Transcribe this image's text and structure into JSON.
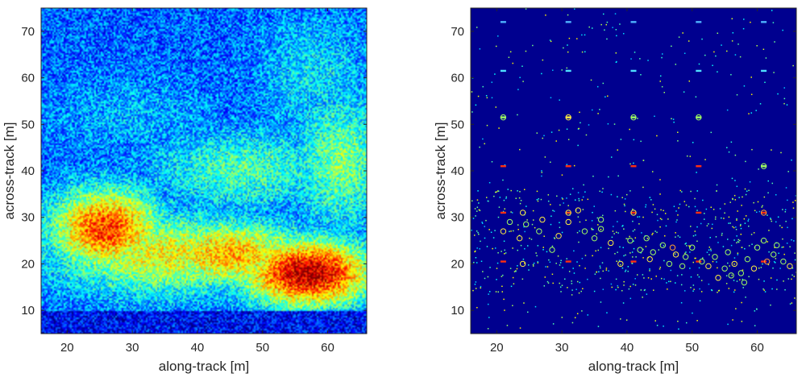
{
  "chart_data": [
    {
      "type": "heatmap",
      "title": "",
      "xlabel": "along-track [m]",
      "ylabel": "across-track [m]",
      "xlim": [
        16,
        66
      ],
      "ylim": [
        5,
        75
      ],
      "xticks": [
        "20",
        "30",
        "40",
        "50",
        "60"
      ],
      "yticks": [
        "10",
        "20",
        "30",
        "40",
        "50",
        "60",
        "70"
      ],
      "colormap": "jet",
      "grid": false,
      "intensity_blobs": [
        {
          "x": 26,
          "y": 27.5,
          "intensity": 0.82,
          "sx": 6,
          "sy": 6
        },
        {
          "x": 57,
          "y": 18,
          "intensity": 0.95,
          "sx": 7,
          "sy": 5
        },
        {
          "x": 45,
          "y": 22,
          "intensity": 0.7,
          "sx": 9,
          "sy": 5
        },
        {
          "x": 35,
          "y": 22,
          "intensity": 0.62,
          "sx": 12,
          "sy": 6
        },
        {
          "x": 62,
          "y": 42,
          "intensity": 0.5,
          "sx": 5,
          "sy": 10
        },
        {
          "x": 47,
          "y": 40,
          "intensity": 0.45,
          "sx": 10,
          "sy": 6
        },
        {
          "x": 58,
          "y": 60,
          "intensity": 0.35,
          "sx": 6,
          "sy": 10
        },
        {
          "x": 30,
          "y": 52,
          "intensity": 0.3,
          "sx": 10,
          "sy": 6
        }
      ]
    },
    {
      "type": "scatter",
      "title": "",
      "xlabel": "along-track [m]",
      "ylabel": "across-track [m]",
      "xlim": [
        16,
        66
      ],
      "ylim": [
        5,
        75
      ],
      "xticks": [
        "20",
        "30",
        "40",
        "50",
        "60"
      ],
      "yticks": [
        "10",
        "20",
        "30",
        "40",
        "50",
        "60",
        "70"
      ],
      "background": "#00008f",
      "grid": false,
      "grid_targets": [
        {
          "x": 21,
          "y": 72,
          "color": "#4fb3ff"
        },
        {
          "x": 31,
          "y": 72,
          "color": "#4fb3ff"
        },
        {
          "x": 41,
          "y": 72,
          "color": "#4fb3ff"
        },
        {
          "x": 51,
          "y": 72,
          "color": "#4fb3ff"
        },
        {
          "x": 61,
          "y": 72,
          "color": "#4fb3ff"
        },
        {
          "x": 21,
          "y": 61.5,
          "color": "#4fe0ff"
        },
        {
          "x": 31,
          "y": 61.5,
          "color": "#4fe0ff"
        },
        {
          "x": 41,
          "y": 61.5,
          "color": "#4fe0ff"
        },
        {
          "x": 51,
          "y": 61.5,
          "color": "#4fe0ff"
        },
        {
          "x": 61,
          "y": 61.5,
          "color": "#4fe0ff"
        },
        {
          "x": 21,
          "y": 51.5,
          "color": "#9fff60"
        },
        {
          "x": 31,
          "y": 51.5,
          "color": "#ffee40"
        },
        {
          "x": 41,
          "y": 51.5,
          "color": "#9fff60"
        },
        {
          "x": 51,
          "y": 51.5,
          "color": "#9fff60"
        },
        {
          "x": 21,
          "y": 41,
          "color": "#ff3010"
        },
        {
          "x": 31,
          "y": 41,
          "color": "#ff3010"
        },
        {
          "x": 41,
          "y": 41,
          "color": "#ff3010"
        },
        {
          "x": 51,
          "y": 41,
          "color": "#ff3010"
        },
        {
          "x": 61,
          "y": 41,
          "color": "#9fff60"
        },
        {
          "x": 21,
          "y": 31,
          "color": "#ff3010"
        },
        {
          "x": 31,
          "y": 31,
          "color": "#ff5020"
        },
        {
          "x": 41,
          "y": 31,
          "color": "#ff3010"
        },
        {
          "x": 51,
          "y": 31,
          "color": "#ff3010"
        },
        {
          "x": 61,
          "y": 31,
          "color": "#ff3010"
        },
        {
          "x": 21,
          "y": 20.5,
          "color": "#ff3010"
        },
        {
          "x": 31,
          "y": 20.5,
          "color": "#ff3010"
        },
        {
          "x": 41,
          "y": 20.5,
          "color": "#ff3010"
        },
        {
          "x": 51,
          "y": 20.5,
          "color": "#ff3010"
        },
        {
          "x": 61,
          "y": 20.5,
          "color": "#ff3010"
        }
      ],
      "circled_detections": [
        {
          "x": 21.0,
          "y": 51.5,
          "color": "#a0ff60"
        },
        {
          "x": 31.0,
          "y": 51.5,
          "color": "#ffee40"
        },
        {
          "x": 41.0,
          "y": 51.5,
          "color": "#a0ff60"
        },
        {
          "x": 51.0,
          "y": 51.5,
          "color": "#a0ff60"
        },
        {
          "x": 61.0,
          "y": 41.0,
          "color": "#a0ff60"
        },
        {
          "x": 31.0,
          "y": 31.0,
          "color": "#ffee40"
        },
        {
          "x": 41.0,
          "y": 31.0,
          "color": "#ffee40"
        },
        {
          "x": 61.0,
          "y": 31.0,
          "color": "#ffa030"
        },
        {
          "x": 21.0,
          "y": 27.0,
          "color": "#ffee40"
        },
        {
          "x": 22.0,
          "y": 29.0,
          "color": "#a0ff60"
        },
        {
          "x": 24.0,
          "y": 31.0,
          "color": "#ffee40"
        },
        {
          "x": 24.5,
          "y": 28.5,
          "color": "#a0ff60"
        },
        {
          "x": 23.5,
          "y": 25.5,
          "color": "#ffee40"
        },
        {
          "x": 26.5,
          "y": 27.0,
          "color": "#a0ff60"
        },
        {
          "x": 27.0,
          "y": 29.5,
          "color": "#ffee40"
        },
        {
          "x": 28.5,
          "y": 23.0,
          "color": "#a0ff60"
        },
        {
          "x": 29.5,
          "y": 26.0,
          "color": "#ffee40"
        },
        {
          "x": 31.0,
          "y": 29.0,
          "color": "#ffee40"
        },
        {
          "x": 32.5,
          "y": 31.5,
          "color": "#ffee40"
        },
        {
          "x": 33.5,
          "y": 27.0,
          "color": "#a0ff60"
        },
        {
          "x": 35.0,
          "y": 25.5,
          "color": "#a0ff60"
        },
        {
          "x": 36.0,
          "y": 27.5,
          "color": "#a0ff60"
        },
        {
          "x": 36.0,
          "y": 29.5,
          "color": "#a0ff60"
        },
        {
          "x": 37.5,
          "y": 24.5,
          "color": "#ffee40"
        },
        {
          "x": 24.0,
          "y": 20.0,
          "color": "#ffee40"
        },
        {
          "x": 39.0,
          "y": 20.0,
          "color": "#ffee40"
        },
        {
          "x": 40.5,
          "y": 25.0,
          "color": "#a0ff60"
        },
        {
          "x": 42.0,
          "y": 23.0,
          "color": "#a0ff60"
        },
        {
          "x": 43.0,
          "y": 25.5,
          "color": "#a0ff60"
        },
        {
          "x": 43.5,
          "y": 21.0,
          "color": "#ffee40"
        },
        {
          "x": 44.0,
          "y": 22.5,
          "color": "#a0ff60"
        },
        {
          "x": 45.5,
          "y": 24.0,
          "color": "#a0ff60"
        },
        {
          "x": 46.5,
          "y": 20.0,
          "color": "#a0ff60"
        },
        {
          "x": 47.0,
          "y": 23.5,
          "color": "#ffa030"
        },
        {
          "x": 47.5,
          "y": 22.0,
          "color": "#ffee40"
        },
        {
          "x": 48.5,
          "y": 19.5,
          "color": "#a0ff60"
        },
        {
          "x": 49.0,
          "y": 21.5,
          "color": "#a0ff60"
        },
        {
          "x": 50.0,
          "y": 23.5,
          "color": "#a0ff60"
        },
        {
          "x": 51.5,
          "y": 20.5,
          "color": "#a0ff60"
        },
        {
          "x": 52.5,
          "y": 19.5,
          "color": "#ffee40"
        },
        {
          "x": 53.5,
          "y": 21.5,
          "color": "#a0ff60"
        },
        {
          "x": 54.0,
          "y": 17.0,
          "color": "#ffee40"
        },
        {
          "x": 55.0,
          "y": 19.0,
          "color": "#a0ff60"
        },
        {
          "x": 55.5,
          "y": 22.5,
          "color": "#a0ff60"
        },
        {
          "x": 56.5,
          "y": 20.0,
          "color": "#ffee40"
        },
        {
          "x": 57.5,
          "y": 18.0,
          "color": "#a0ff60"
        },
        {
          "x": 58.5,
          "y": 21.0,
          "color": "#a0ff60"
        },
        {
          "x": 59.5,
          "y": 19.0,
          "color": "#ffee40"
        },
        {
          "x": 60.0,
          "y": 23.5,
          "color": "#a0ff60"
        },
        {
          "x": 61.0,
          "y": 25.0,
          "color": "#a0ff60"
        },
        {
          "x": 61.5,
          "y": 20.5,
          "color": "#ffa030"
        },
        {
          "x": 62.5,
          "y": 22.0,
          "color": "#a0ff60"
        },
        {
          "x": 63.0,
          "y": 24.0,
          "color": "#a0ff60"
        },
        {
          "x": 64.0,
          "y": 20.5,
          "color": "#a0ff60"
        },
        {
          "x": 65.0,
          "y": 19.5,
          "color": "#ffee40"
        },
        {
          "x": 56.0,
          "y": 17.5,
          "color": "#a0ff60"
        },
        {
          "x": 58.0,
          "y": 16.0,
          "color": "#a0ff60"
        }
      ]
    }
  ]
}
